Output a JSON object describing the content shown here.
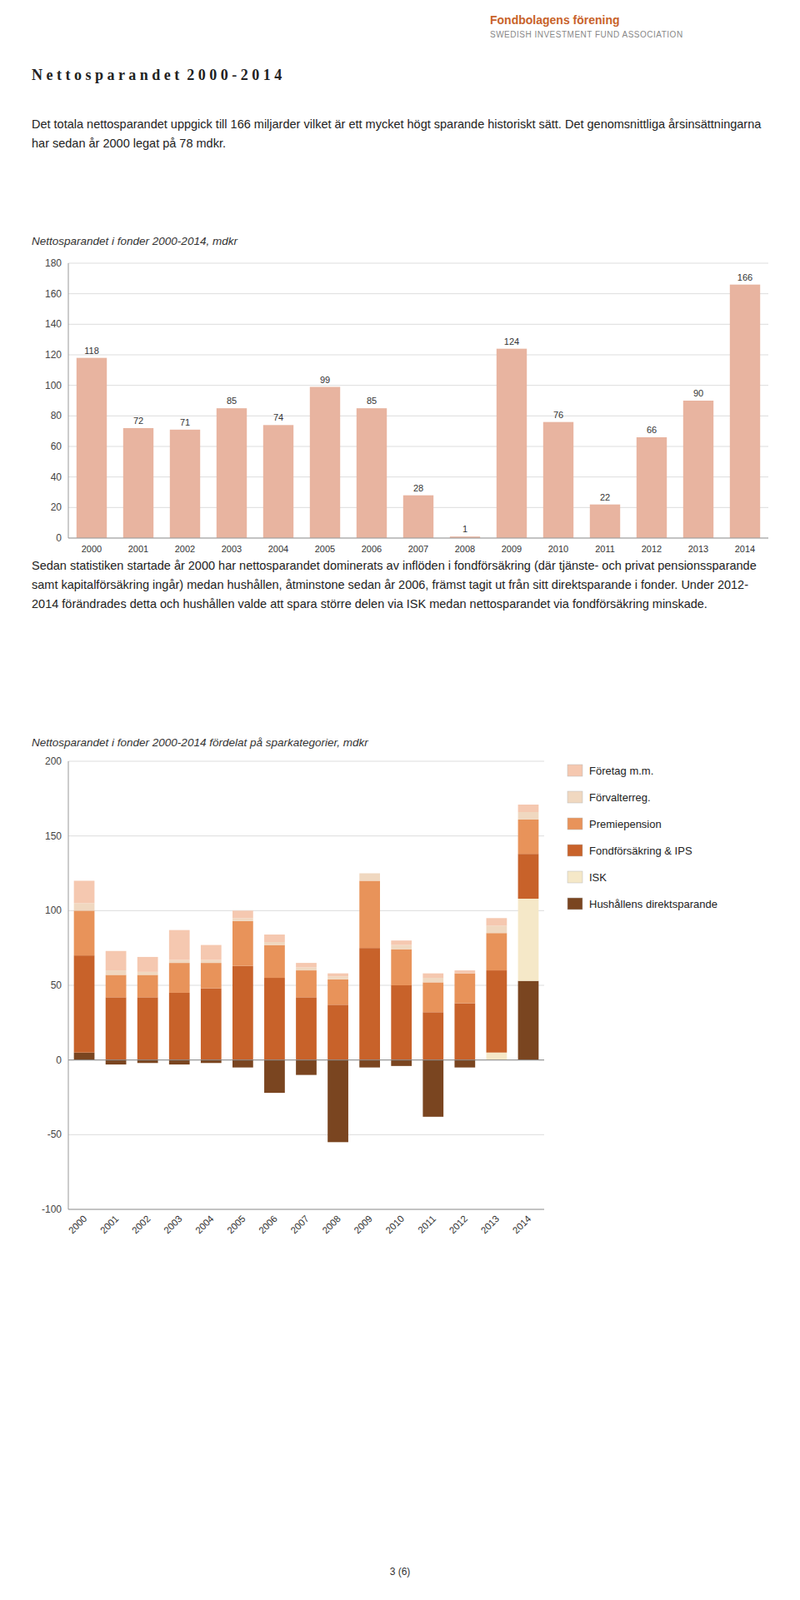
{
  "page": {
    "logo_title": "Fondbolagens förening",
    "logo_subtitle": "SWEDISH INVESTMENT FUND ASSOCIATION",
    "title": "N e t t o s p a r a n d e t  2 0 0 0 - 2 0 1 4",
    "paragraphs": [
      "Det totala nettosparandet uppgick till 166 miljarder vilket är ett mycket högt sparande historiskt sätt. Det genomsnittliga årsinsättningarna har sedan år 2000 legat på 78 mdkr.",
      "Sedan statistiken startade år 2000 har nettosparandet dominerats av inflöden i fondförsäkring (där tjänste- och privat pensionssparande samt kapitalförsäkring ingår) medan hushållen, åtminstone sedan år 2006, främst tagit ut från sitt direktsparande i fonder. Under 2012-2014 förändrades detta och hushållen valde att spara större delen via ISK medan nettosparandet via fondförsäkring minskade."
    ],
    "footer": "3 (6)"
  },
  "chart_data": [
    {
      "type": "bar",
      "title": "Nettosparandet i fonder 2000-2014, mdkr",
      "categories": [
        "2000",
        "2001",
        "2002",
        "2003",
        "2004",
        "2005",
        "2006",
        "2007",
        "2008",
        "2009",
        "2010",
        "2011",
        "2012",
        "2013",
        "2014"
      ],
      "values": [
        118,
        72,
        71,
        85,
        74,
        99,
        85,
        28,
        1,
        124,
        76,
        22,
        66,
        90,
        166
      ],
      "color": "#e8b4a0",
      "ylim": [
        0,
        180
      ],
      "yticks": [
        0,
        20,
        40,
        60,
        80,
        100,
        120,
        140,
        160,
        180
      ],
      "grid": true,
      "data_labels": true
    },
    {
      "type": "bar",
      "stacked": true,
      "title": "Nettosparandet i fonder 2000-2014 fördelat på sparkategorier, mdkr",
      "categories": [
        "2000",
        "2001",
        "2002",
        "2003",
        "2004",
        "2005",
        "2006",
        "2007",
        "2008",
        "2009",
        "2010",
        "2011",
        "2012",
        "2013",
        "2014"
      ],
      "series": [
        {
          "name": "Företag m.m.",
          "color": "#f5c8b0",
          "values": [
            15,
            13,
            10,
            20,
            10,
            5,
            5,
            3,
            2,
            0,
            3,
            3,
            2,
            5,
            5
          ]
        },
        {
          "name": "Förvalterreg.",
          "color": "#f0d8c0",
          "values": [
            5,
            3,
            2,
            2,
            2,
            2,
            2,
            2,
            2,
            5,
            3,
            3,
            0,
            5,
            5
          ]
        },
        {
          "name": "Premiepension",
          "color": "#e8935a",
          "values": [
            30,
            15,
            15,
            20,
            17,
            30,
            22,
            18,
            17,
            45,
            24,
            20,
            20,
            25,
            23
          ]
        },
        {
          "name": "Fondförsäkring & IPS",
          "color": "#c8622a",
          "values": [
            65,
            42,
            42,
            45,
            48,
            63,
            55,
            42,
            37,
            75,
            50,
            32,
            38,
            55,
            30
          ]
        },
        {
          "name": "ISK",
          "color": "#f5e8c8",
          "values": [
            0,
            0,
            0,
            0,
            0,
            0,
            0,
            0,
            0,
            0,
            0,
            0,
            0,
            5,
            55
          ]
        },
        {
          "name": "Hushållens direktsparande",
          "color": "#7a4520",
          "values": [
            5,
            -3,
            -2,
            -3,
            -2,
            -5,
            -22,
            -10,
            -55,
            -5,
            -4,
            -38,
            -5,
            0,
            53
          ]
        }
      ],
      "ylim": [
        -100,
        200
      ],
      "yticks": [
        -100,
        -50,
        0,
        50,
        100,
        150,
        200
      ],
      "grid": true,
      "legend": "right"
    }
  ]
}
